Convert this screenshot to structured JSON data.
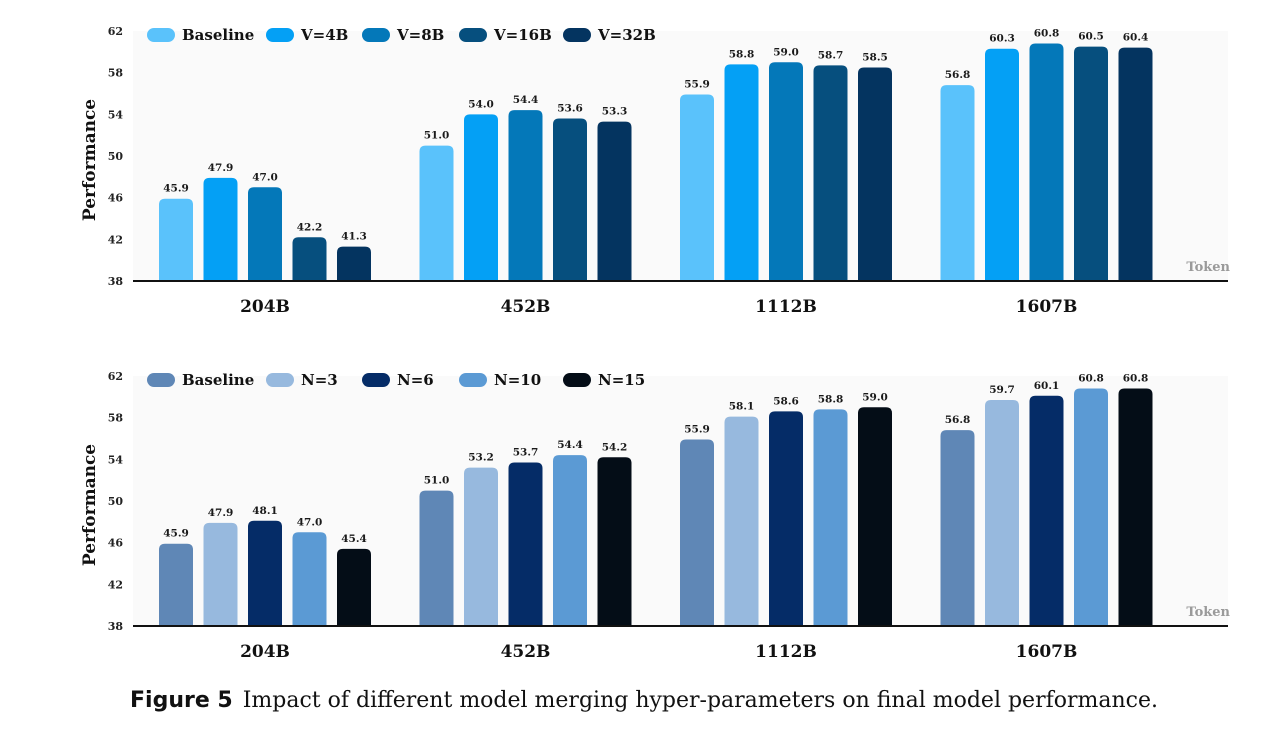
{
  "chart_data": [
    {
      "type": "bar",
      "ylabel": "Performance",
      "xlabel": "Token",
      "ylim": [
        38,
        62
      ],
      "yticks": [
        38,
        42,
        46,
        50,
        54,
        58,
        62
      ],
      "categories": [
        "204B",
        "452B",
        "1112B",
        "1607B"
      ],
      "legend_position": "top-left",
      "series": [
        {
          "name": "Baseline",
          "color": "#5ac2fb",
          "values": [
            45.9,
            51.0,
            55.9,
            56.8
          ]
        },
        {
          "name": "V=4B",
          "color": "#04a0f5",
          "values": [
            47.9,
            54.0,
            58.8,
            60.3
          ]
        },
        {
          "name": "V=8B",
          "color": "#0478b9",
          "values": [
            47.0,
            54.4,
            59.0,
            60.8
          ]
        },
        {
          "name": "V=16B",
          "color": "#064f7e",
          "values": [
            42.2,
            53.6,
            58.7,
            60.5
          ]
        },
        {
          "name": "V=32B",
          "color": "#043460",
          "values": [
            41.3,
            53.3,
            58.5,
            60.4
          ]
        }
      ]
    },
    {
      "type": "bar",
      "ylabel": "Performance",
      "xlabel": "Token",
      "ylim": [
        38,
        62
      ],
      "yticks": [
        38,
        42,
        46,
        50,
        54,
        58,
        62
      ],
      "categories": [
        "204B",
        "452B",
        "1112B",
        "1607B"
      ],
      "legend_position": "top-left",
      "series": [
        {
          "name": "Baseline",
          "color": "#5f87b6",
          "values": [
            45.9,
            51.0,
            55.9,
            56.8
          ]
        },
        {
          "name": "N=3",
          "color": "#97b9de",
          "values": [
            47.9,
            53.2,
            58.1,
            59.7
          ]
        },
        {
          "name": "N=6",
          "color": "#052c67",
          "values": [
            48.1,
            53.7,
            58.6,
            60.1
          ]
        },
        {
          "name": "N=10",
          "color": "#5b9ad4",
          "values": [
            47.0,
            54.4,
            58.8,
            60.8
          ]
        },
        {
          "name": "N=15",
          "color": "#040d17",
          "values": [
            45.4,
            54.2,
            59.0,
            60.8
          ]
        }
      ]
    }
  ],
  "caption": {
    "label": "Figure 5",
    "text": "Impact of different model merging hyper-parameters on final model performance."
  }
}
